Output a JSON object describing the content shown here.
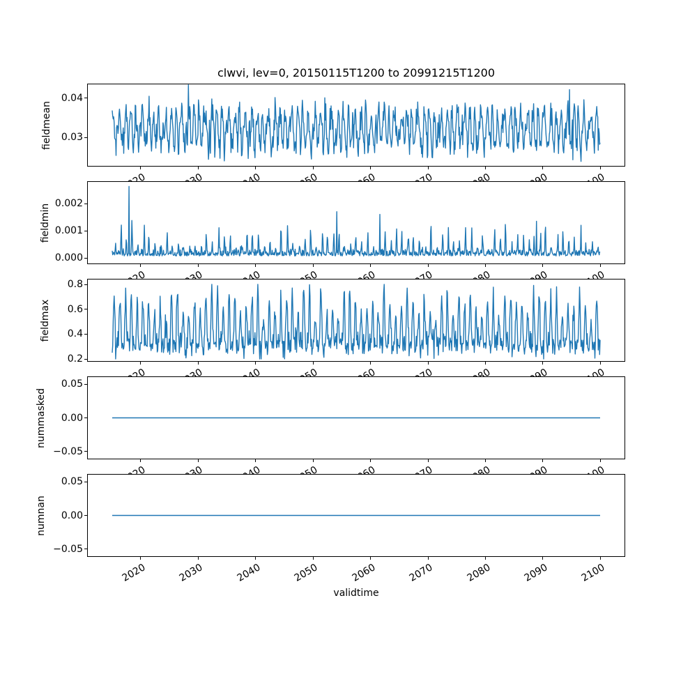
{
  "figure": {
    "title": "clwvi, lev=0, 20150115T1200 to 20991215T1200",
    "xlabel": "validtime",
    "colors": {
      "line": "#1f77b4",
      "axis": "#000000",
      "background": "#ffffff",
      "text": "#000000"
    },
    "x_ticks": [
      2020,
      2030,
      2040,
      2050,
      2060,
      2070,
      2080,
      2090,
      2100
    ],
    "x_tick_labels": [
      "2020",
      "2030",
      "2040",
      "2050",
      "2060",
      "2070",
      "2080",
      "2090",
      "2100"
    ],
    "xlim": [
      2010.79,
      2104.2
    ],
    "grid": false,
    "legend": null
  },
  "chart_data": [
    {
      "type": "line",
      "ylabel": "fieldmean",
      "x_range": [
        2015.0417,
        2099.9583
      ],
      "cadence": "monthly",
      "points": 1020,
      "ylim": [
        0.02276,
        0.04345
      ],
      "yticks": [
        0.03,
        0.04
      ],
      "ytick_labels": [
        "0.03",
        "0.04"
      ],
      "series": [
        {
          "name": "fieldmean",
          "color": "#1f77b4",
          "stats": {
            "min": 0.0239,
            "max": 0.0433,
            "mean": 0.0317
          },
          "gen": {
            "kind": "seasonal_noise",
            "base": 0.0322,
            "amp": 0.0045,
            "noise": 0.0017,
            "seed": 101,
            "clip": [
              0.0239,
              0.0428
            ],
            "spikes": [
              {
                "t": 2028.3,
                "v": 0.0433
              },
              {
                "t": 2094.6,
                "v": 0.0421
              },
              {
                "t": 2095.2,
                "v": 0.0243
              }
            ]
          }
        }
      ]
    },
    {
      "type": "line",
      "ylabel": "fieldmin",
      "x_range": [
        2015.0417,
        2099.9583
      ],
      "cadence": "monthly",
      "points": 1020,
      "ylim": [
        -0.000205,
        0.002795
      ],
      "yticks": [
        0.0,
        0.001,
        0.002
      ],
      "ytick_labels": [
        "0.000",
        "0.001",
        "0.002"
      ],
      "series": [
        {
          "name": "fieldmin",
          "color": "#1f77b4",
          "stats": {
            "min": 2e-05,
            "max": 0.0027,
            "typical_base": 0.0002
          },
          "gen": {
            "kind": "annual_spikes",
            "floor": 7e-05,
            "floor_noise": 0.00011,
            "spike_min": 0.00025,
            "spike_max": 0.00125,
            "power": 8,
            "seed": 202,
            "clip": [
              2e-05,
              0.0027
            ],
            "spikes": [
              {
                "t": 2017.95,
                "v": 0.00263
              },
              {
                "t": 2054.1,
                "v": 0.0017
              },
              {
                "t": 2061.6,
                "v": 0.0016
              },
              {
                "t": 2088.9,
                "v": 0.00135
              },
              {
                "t": 2096.6,
                "v": 0.0012
              }
            ]
          }
        }
      ]
    },
    {
      "type": "line",
      "ylabel": "fieldmax",
      "x_range": [
        2015.0417,
        2099.9583
      ],
      "cadence": "monthly",
      "points": 1020,
      "ylim": [
        0.183,
        0.839
      ],
      "yticks": [
        0.2,
        0.4,
        0.6,
        0.8
      ],
      "ytick_labels": [
        "0.2",
        "0.4",
        "0.6",
        "0.8"
      ],
      "series": [
        {
          "name": "fieldmax",
          "color": "#1f77b4",
          "stats": {
            "min": 0.2,
            "max": 0.8,
            "typical_base": 0.33
          },
          "gen": {
            "kind": "seasonal_peaks",
            "base": 0.315,
            "peak_min": 0.2,
            "peak_max": 0.46,
            "noise": 0.045,
            "power": 1.3,
            "seed": 303,
            "clip": [
              0.2,
              0.8
            ],
            "spikes": [
              {
                "t": 2040.4,
                "v": 0.8
              },
              {
                "t": 2017.4,
                "v": 0.77
              },
              {
                "t": 2073.3,
                "v": 0.75
              },
              {
                "t": 2092.4,
                "v": 0.78
              }
            ]
          }
        }
      ]
    },
    {
      "type": "line",
      "ylabel": "nummasked",
      "x_range": [
        2015.0417,
        2099.9583
      ],
      "cadence": "monthly",
      "points": 1020,
      "ylim": [
        -0.0605,
        0.0605
      ],
      "yticks": [
        -0.05,
        0.0,
        0.05
      ],
      "ytick_labels": [
        "−0.05",
        "0.00",
        "0.05"
      ],
      "series": [
        {
          "name": "nummasked",
          "color": "#1f77b4",
          "stats": {
            "min": 0,
            "max": 0,
            "mean": 0
          },
          "gen": {
            "kind": "constant",
            "value": 0
          }
        }
      ]
    },
    {
      "type": "line",
      "ylabel": "numnan",
      "x_range": [
        2015.0417,
        2099.9583
      ],
      "cadence": "monthly",
      "points": 1020,
      "ylim": [
        -0.0605,
        0.0605
      ],
      "yticks": [
        -0.05,
        0.0,
        0.05
      ],
      "ytick_labels": [
        "−0.05",
        "0.00",
        "0.05"
      ],
      "series": [
        {
          "name": "numnan",
          "color": "#1f77b4",
          "stats": {
            "min": 0,
            "max": 0,
            "mean": 0
          },
          "gen": {
            "kind": "constant",
            "value": 0
          }
        }
      ]
    }
  ]
}
